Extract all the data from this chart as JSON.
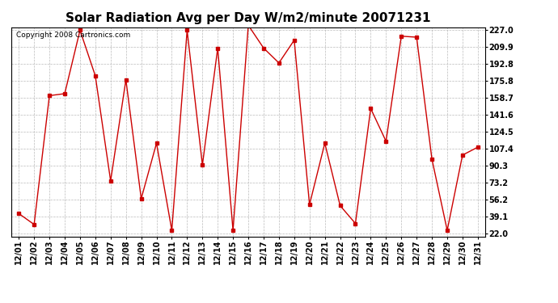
{
  "title": "Solar Radiation Avg per Day W/m2/minute 20071231",
  "copyright": "Copyright 2008 Cartronics.com",
  "dates": [
    "12/01",
    "12/02",
    "12/03",
    "12/04",
    "12/05",
    "12/06",
    "12/07",
    "12/08",
    "12/09",
    "12/10",
    "12/11",
    "12/12",
    "12/13",
    "12/14",
    "12/15",
    "12/16",
    "12/17",
    "12/18",
    "12/19",
    "12/20",
    "12/21",
    "12/22",
    "12/23",
    "12/24",
    "12/25",
    "12/26",
    "12/27",
    "12/28",
    "12/29",
    "12/30",
    "12/31"
  ],
  "values": [
    42,
    31,
    161,
    163,
    227,
    181,
    75,
    177,
    57,
    113,
    25,
    227,
    91,
    209,
    25,
    232,
    209,
    194,
    217,
    51,
    113,
    50,
    32,
    148,
    115,
    221,
    220,
    97,
    25,
    101,
    109
  ],
  "yticks": [
    22.0,
    39.1,
    56.2,
    73.2,
    90.3,
    107.4,
    124.5,
    141.6,
    158.7,
    175.8,
    192.8,
    209.9,
    227.0
  ],
  "line_color": "#cc0000",
  "marker": "s",
  "marker_size": 3,
  "background_color": "#ffffff",
  "grid_color": "#bbbbbb",
  "ylim_min": 22.0,
  "ylim_max": 227.0,
  "title_fontsize": 11,
  "tick_fontsize": 7,
  "copyright_fontsize": 6.5
}
